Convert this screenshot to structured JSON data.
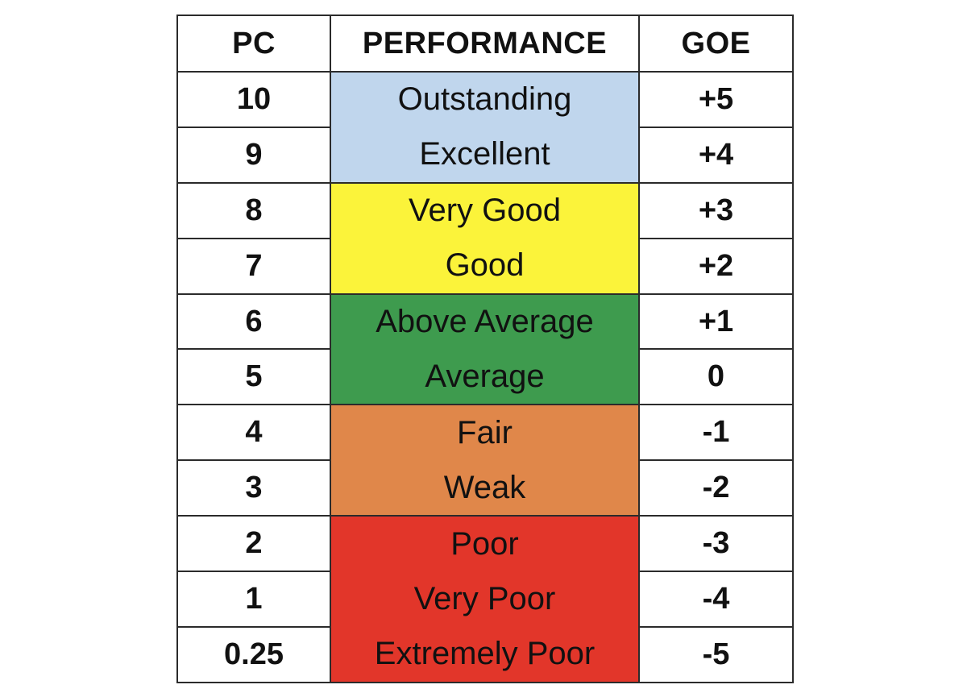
{
  "table": {
    "headers": {
      "pc": "PC",
      "performance": "PERFORMANCE",
      "goe": "GOE"
    },
    "rows": [
      {
        "pc": "10",
        "performance": "Outstanding",
        "goe": "+5"
      },
      {
        "pc": "9",
        "performance": "Excellent",
        "goe": "+4"
      },
      {
        "pc": "8",
        "performance": "Very Good",
        "goe": "+3"
      },
      {
        "pc": "7",
        "performance": "Good",
        "goe": "+2"
      },
      {
        "pc": "6",
        "performance": "Above Average",
        "goe": "+1"
      },
      {
        "pc": "5",
        "performance": "Average",
        "goe": "0"
      },
      {
        "pc": "4",
        "performance": "Fair",
        "goe": "-1"
      },
      {
        "pc": "3",
        "performance": "Weak",
        "goe": "-2"
      },
      {
        "pc": "2",
        "performance": "Poor",
        "goe": "-3"
      },
      {
        "pc": "1",
        "performance": "Very Poor",
        "goe": "-4"
      },
      {
        "pc": "0.25",
        "performance": "Extremely Poor",
        "goe": "-5"
      }
    ],
    "band_colors": {
      "blue": "#c0d6ed",
      "yellow": "#fbf33a",
      "green": "#3e9b4e",
      "orange": "#e0874a",
      "red": "#e2362a"
    }
  }
}
